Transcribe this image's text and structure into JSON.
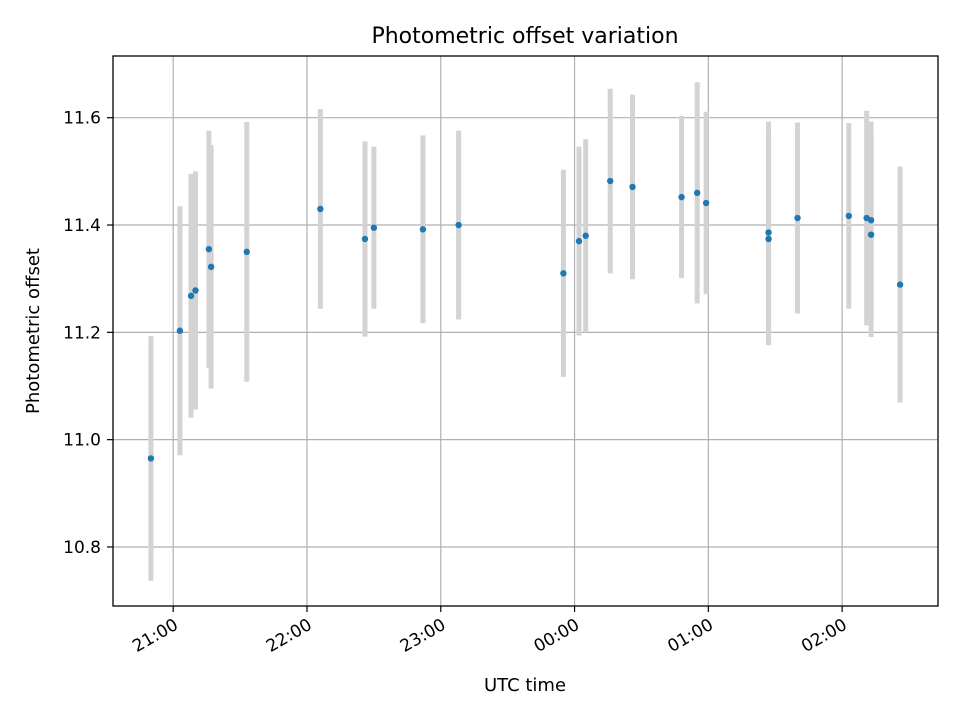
{
  "chart_data": {
    "type": "scatter",
    "title": "Photometric offset variation",
    "xlabel": "UTC time",
    "ylabel": "Photometric offset",
    "x_tick_labels": [
      "21:00",
      "22:00",
      "23:00",
      "00:00",
      "01:00",
      "02:00"
    ],
    "y_tick_labels": [
      "10.8",
      "11.0",
      "11.2",
      "11.4",
      "11.6"
    ],
    "x_ticks": [
      "21:00",
      "22:00",
      "23:00",
      "00:00",
      "01:00",
      "02:00"
    ],
    "y_ticks": [
      10.8,
      11.0,
      11.2,
      11.4,
      11.6
    ],
    "xlim": [
      "20:33",
      "02:43"
    ],
    "ylim": [
      10.69,
      11.715
    ],
    "grid": true,
    "point_color": "#1f77b4",
    "errorbar_color": "#d3d3d3",
    "series": [
      {
        "x": [
          "20:50",
          "21:03",
          "21:08",
          "21:10",
          "21:16",
          "21:17",
          "21:33",
          "22:06",
          "22:26",
          "22:30",
          "22:52",
          "23:08",
          "23:55",
          "00:02",
          "00:05",
          "00:16",
          "00:26",
          "00:48",
          "00:55",
          "00:59",
          "01:27",
          "01:27",
          "01:40",
          "02:03",
          "02:11",
          "02:13",
          "02:13",
          "02:26"
        ],
        "y": [
          10.965,
          11.203,
          11.268,
          11.278,
          11.355,
          11.322,
          11.35,
          11.43,
          11.374,
          11.395,
          11.392,
          11.4,
          11.31,
          11.37,
          11.38,
          11.482,
          11.471,
          11.452,
          11.46,
          11.441,
          11.386,
          11.374,
          11.413,
          11.417,
          11.413,
          11.382,
          11.409,
          11.289
        ],
        "yerr": [
          0.228,
          0.232,
          0.227,
          0.222,
          0.221,
          0.227,
          0.242,
          0.186,
          0.182,
          0.151,
          0.175,
          0.176,
          0.193,
          0.176,
          0.18,
          0.172,
          0.172,
          0.151,
          0.206,
          0.17,
          0.207,
          0.198,
          0.178,
          0.173,
          0.2,
          0.191,
          0.184,
          0.22
        ]
      }
    ]
  }
}
